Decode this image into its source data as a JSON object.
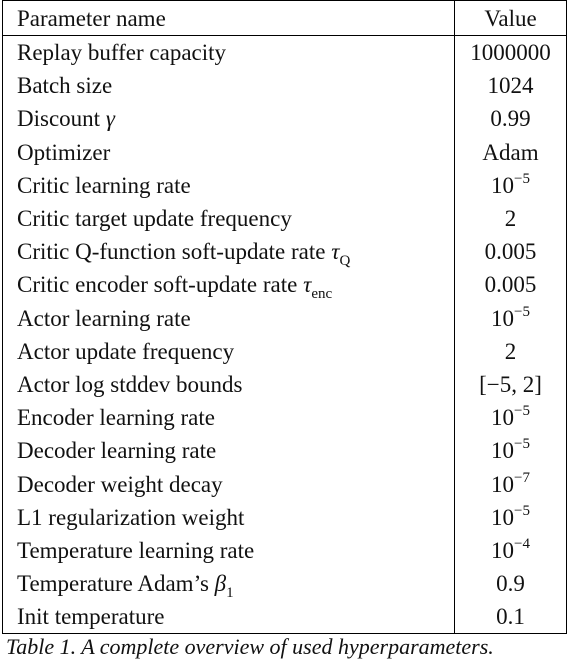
{
  "table": {
    "headers": {
      "name": "Parameter name",
      "value": "Value"
    },
    "rows": [
      {
        "name": "Replay buffer capacity",
        "value": "1000000"
      },
      {
        "name": "Batch size",
        "value": "1024"
      },
      {
        "name": "Discount",
        "sym": "γ",
        "value": "0.99"
      },
      {
        "name": "Optimizer",
        "value": "Adam"
      },
      {
        "name": "Critic learning rate",
        "base": "10",
        "exp": "−5"
      },
      {
        "name": "Critic target update frequency",
        "value": "2"
      },
      {
        "name": "Critic Q-function soft-update rate",
        "sym": "τ",
        "sub": "Q",
        "value": "0.005"
      },
      {
        "name": "Critic encoder soft-update rate",
        "sym": "τ",
        "sub": "enc",
        "value": "0.005"
      },
      {
        "name": "Actor learning rate",
        "base": "10",
        "exp": "−5"
      },
      {
        "name": "Actor update frequency",
        "value": "2"
      },
      {
        "name": "Actor log stddev bounds",
        "value": "[−5, 2]"
      },
      {
        "name": "Encoder learning rate",
        "base": "10",
        "exp": "−5"
      },
      {
        "name": "Decoder learning rate",
        "base": "10",
        "exp": "−5"
      },
      {
        "name": "Decoder weight decay",
        "base": "10",
        "exp": "−7"
      },
      {
        "name": "L1 regularization weight",
        "base": "10",
        "exp": "−5"
      },
      {
        "name": "Temperature learning rate",
        "base": "10",
        "exp": "−4"
      },
      {
        "name": "Temperature Adam’s",
        "sym": "β",
        "sub": "1",
        "value": "0.9"
      },
      {
        "name": "Init temperature",
        "value": "0.1"
      }
    ]
  },
  "caption": "Table 1. A complete overview of used hyperparameters."
}
